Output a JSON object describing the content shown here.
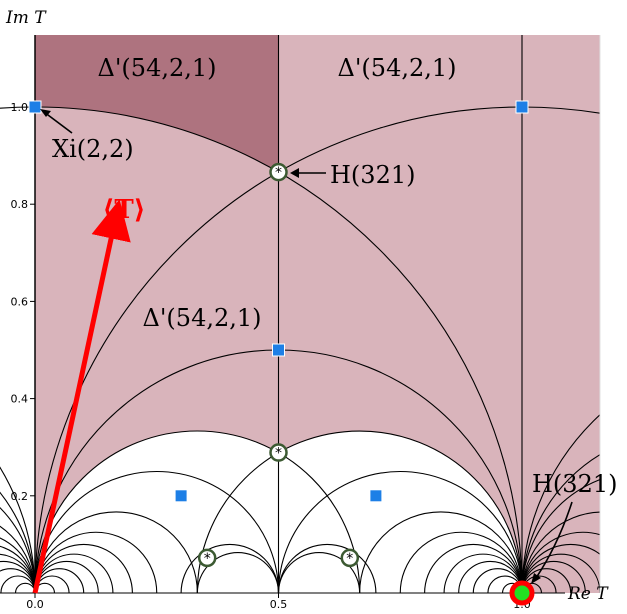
{
  "axes": {
    "x_label": "Re T",
    "y_label": "Im T",
    "x_ticks": [
      "0.0",
      "0.5",
      "1.0"
    ],
    "y_ticks": [
      "0.2",
      "0.4",
      "0.6",
      "0.8",
      "1.0"
    ]
  },
  "regions": {
    "dark_label": "Δ'(54,2,1)",
    "right_label": "Δ'(54,2,1)",
    "center_label": "Δ'(54,2,1)"
  },
  "annotations": {
    "xi": "Xi(2,2)",
    "h_top": "H(321)",
    "h_bottom": "H(321)",
    "arrow_label": "⟨T⟩"
  },
  "colors": {
    "dark_region": "#ae737f",
    "light_region": "#d9b4bb",
    "square_marker": "#1d7fe6",
    "circle_marker_ring": "#3c5a32",
    "arrow": "#ff0000",
    "highlight_ring": "#ff0000",
    "highlight_fill": "#22e022"
  },
  "points": {
    "squares": [
      {
        "re": 0.0,
        "im": 1.0
      },
      {
        "re": 1.0,
        "im": 1.0
      },
      {
        "re": 0.5,
        "im": 0.5
      },
      {
        "re": 0.3,
        "im": 0.2
      },
      {
        "re": 0.7,
        "im": 0.2
      }
    ],
    "circles": [
      {
        "re": 0.5,
        "im": 0.866
      },
      {
        "re": 0.5,
        "im": 0.289
      },
      {
        "re": 0.3536,
        "im": 0.0722
      },
      {
        "re": 0.6464,
        "im": 0.0722
      }
    ]
  },
  "arrow_vector": {
    "from": {
      "re": 0.0,
      "im": 0.0
    },
    "to": {
      "re": 0.165,
      "im": 0.77
    }
  },
  "highlight_point": {
    "re": 1.0,
    "im": 0.0
  }
}
